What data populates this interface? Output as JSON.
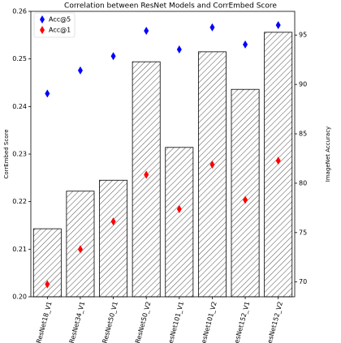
{
  "chart_data": {
    "type": "bar",
    "title": "Correlation between ResNet Models and CorrEmbed Score",
    "y_label": "CorrEmbed Score",
    "y2_label": "ImageNet Accuracy",
    "categories": [
      "ResNet18_V1",
      "ResNet34_V1",
      "ResNet50_V1",
      "ResNet50_V2",
      "ResNet101_V1",
      "ResNet101_V2",
      "ResNet152_V1",
      "ResNet152_V2"
    ],
    "values": [
      0.2143,
      0.2222,
      0.2245,
      0.2494,
      0.2314,
      0.2515,
      0.2436,
      0.2556
    ],
    "color": "#ffffff",
    "ylim": [
      0.2,
      0.26
    ],
    "yticks": [
      {
        "value": 0.2,
        "label": "0.20"
      },
      0.21,
      0.22,
      0.23,
      0.24,
      0.25,
      0.26
    ],
    "y2lim": [
      68.5,
      97.4
    ],
    "y2ticks": [
      70,
      75,
      80,
      85,
      90,
      95
    ],
    "legend": "upper left",
    "series": [
      {
        "name": "Acc@5",
        "color": "#0000ff",
        "axis": "y2",
        "values": [
          89.078,
          91.42,
          92.862,
          95.434,
          93.546,
          95.78,
          94.046,
          96.002
        ]
      },
      {
        "name": "Acc@1",
        "color": "#ff0000",
        "axis": "y2",
        "values": [
          69.758,
          73.314,
          76.13,
          80.858,
          77.374,
          81.886,
          78.312,
          82.284
        ]
      }
    ]
  }
}
